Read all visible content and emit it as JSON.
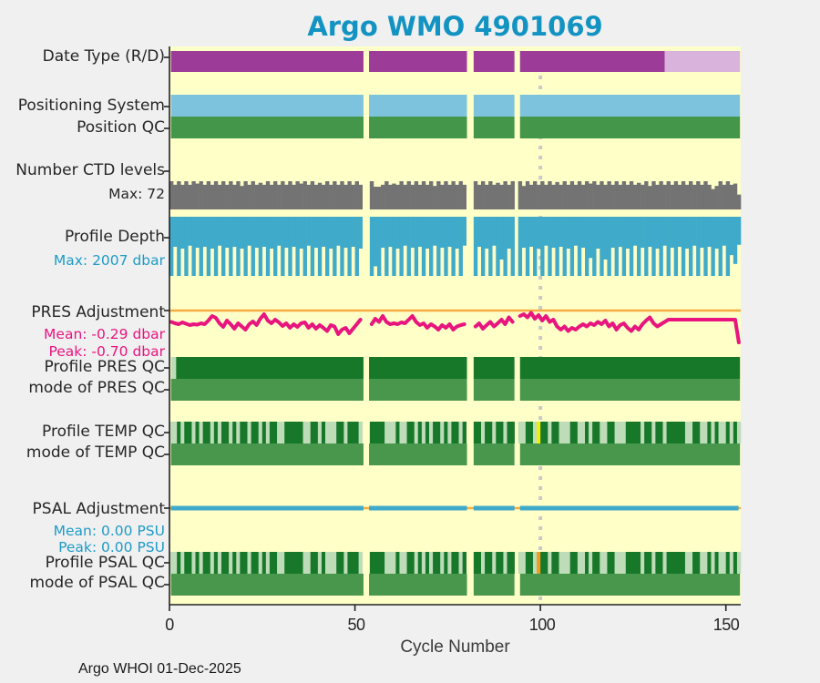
{
  "title": "Argo WMO 4901069",
  "footer": "Argo WHOI 01-Dec-2025",
  "x_axis": {
    "label": "Cycle Number",
    "tick_labels": [
      "0",
      "50",
      "100",
      "150"
    ]
  },
  "labels": {
    "date_type": "Date Type (R/D)",
    "positioning_system": "Positioning System",
    "position_qc": "Position QC",
    "ctd_levels": "Number CTD levels",
    "ctd_max": "Max: 72",
    "profile_depth": "Profile Depth",
    "depth_max": "Max: 2007 dbar",
    "pres_adjustment": "PRES Adjustment",
    "pres_mean": "Mean: -0.29 dbar",
    "pres_peak": "Peak: -0.70 dbar",
    "profile_pres_qc": "Profile PRES QC",
    "mode_pres_qc": "mode of PRES QC",
    "profile_temp_qc": "Profile TEMP QC",
    "mode_temp_qc": "mode of TEMP QC",
    "psal_adjustment": "PSAL Adjustment",
    "psal_mean": "Mean: 0.00 PSU",
    "psal_peak": "Peak: 0.00 PSU",
    "profile_psal_qc": "Profile PSAL QC",
    "mode_psal_qc": "mode of PSAL QC"
  },
  "colors": {
    "title": "#1293c2",
    "fig_bg": "#f0f0f0",
    "plot_bg": "#ffffc8",
    "purple": "#9c3c98",
    "light_purple": "#d9b3db",
    "light_blue": "#7ec3de",
    "green": "#44964a",
    "gray_bars": "#737373",
    "depth_blue": "#3faac9",
    "magenta": "#e8157f",
    "orange_line": "#f7ad42",
    "dark_green": "#17782a",
    "medium_green": "#49974d",
    "light_green": "#bfdcb8",
    "qc_yellow": "#f2ef00",
    "qc_orange": "#f29b1d",
    "dotted_line": "#c9c9c9",
    "axis": "#222222",
    "label_blue": "#1e9bc8"
  },
  "chart_data": {
    "type": "multi-row status timeline (Argo float QC summary)",
    "x_label": "Cycle Number",
    "x_range": [
      0,
      154
    ],
    "x_ticks": [
      0,
      50,
      100,
      150
    ],
    "reference_line_x": 100,
    "gap_cycles": [
      [
        52.3,
        53.8
      ],
      [
        80.2,
        82.0
      ],
      [
        93.0,
        94.5
      ]
    ],
    "rows": [
      {
        "id": "date_type",
        "type": "segments",
        "segments": [
          {
            "from": 0.4,
            "to": 52.3,
            "c": "purple"
          },
          {
            "from": 53.8,
            "to": 80.2,
            "c": "purple"
          },
          {
            "from": 82.0,
            "to": 93.0,
            "c": "purple"
          },
          {
            "from": 94.5,
            "to": 133.5,
            "c": "purple"
          },
          {
            "from": 133.5,
            "to": 153.8,
            "c": "light_purple"
          }
        ]
      },
      {
        "id": "positioning_system",
        "type": "segments",
        "segments": [
          {
            "from": 0.4,
            "to": 52.3,
            "c": "light_blue"
          },
          {
            "from": 53.8,
            "to": 80.2,
            "c": "light_blue"
          },
          {
            "from": 82.0,
            "to": 93.0,
            "c": "light_blue"
          },
          {
            "from": 94.5,
            "to": 153.8,
            "c": "light_blue"
          }
        ]
      },
      {
        "id": "position_qc",
        "type": "segments",
        "segments": [
          {
            "from": 0.4,
            "to": 52.3,
            "c": "green"
          },
          {
            "from": 53.8,
            "to": 80.2,
            "c": "green"
          },
          {
            "from": 82.0,
            "to": 93.0,
            "c": "green"
          },
          {
            "from": 94.5,
            "to": 153.8,
            "c": "green"
          }
        ]
      },
      {
        "id": "ctd_levels",
        "type": "bars_up",
        "max": 72,
        "values": [
          72,
          63,
          72,
          63,
          72,
          63,
          72,
          66,
          72,
          63,
          72,
          63,
          72,
          63,
          72,
          63,
          72,
          63,
          72,
          60,
          72,
          63,
          72,
          63,
          68,
          63,
          72,
          63,
          72,
          63,
          72,
          63,
          72,
          63,
          72,
          66,
          72,
          63,
          72,
          63,
          68,
          63,
          72,
          63,
          72,
          63,
          72,
          63,
          72,
          63,
          72,
          63,
          null,
          null,
          72,
          58,
          58,
          63,
          72,
          63,
          66,
          63,
          72,
          63,
          72,
          63,
          72,
          63,
          72,
          63,
          72,
          60,
          72,
          63,
          72,
          63,
          72,
          63,
          72,
          63,
          null,
          null,
          72,
          63,
          72,
          63,
          72,
          63,
          68,
          63,
          72,
          63,
          72,
          null,
          72,
          60,
          72,
          63,
          72,
          63,
          72,
          63,
          72,
          63,
          70,
          63,
          72,
          63,
          72,
          63,
          72,
          63,
          72,
          66,
          72,
          63,
          72,
          63,
          72,
          63,
          72,
          63,
          72,
          63,
          72,
          63,
          68,
          63,
          72,
          60,
          72,
          63,
          72,
          63,
          72,
          63,
          72,
          63,
          72,
          63,
          72,
          63,
          72,
          63,
          72,
          63,
          52,
          60,
          72,
          63,
          72,
          63,
          66,
          38
        ]
      },
      {
        "id": "profile_depth",
        "type": "bars_down",
        "max": 2007,
        "values": [
          2007,
          1020,
          2007,
          1080,
          2007,
          980,
          2007,
          1050,
          2007,
          1020,
          2007,
          1080,
          2007,
          980,
          2007,
          1050,
          2007,
          1020,
          2007,
          1080,
          2007,
          980,
          2007,
          1050,
          2007,
          1020,
          2007,
          1080,
          2007,
          980,
          2007,
          1050,
          2007,
          1020,
          2007,
          1080,
          2007,
          980,
          2007,
          1050,
          2007,
          1020,
          2007,
          1080,
          2007,
          980,
          2007,
          1050,
          2007,
          1020,
          2007,
          1080,
          null,
          null,
          2007,
          1680,
          2007,
          1050,
          2007,
          1020,
          2007,
          1080,
          2007,
          980,
          2007,
          1050,
          2007,
          1020,
          2007,
          1080,
          2007,
          980,
          2007,
          1050,
          2007,
          1020,
          2007,
          1080,
          2007,
          980,
          null,
          null,
          2007,
          1020,
          2007,
          1080,
          2007,
          980,
          2007,
          1450,
          2007,
          1080,
          2007,
          null,
          2007,
          1050,
          2007,
          1020,
          2007,
          1080,
          2007,
          980,
          2007,
          1050,
          2007,
          1020,
          2007,
          1080,
          2007,
          980,
          2007,
          1050,
          2007,
          1400,
          2007,
          1080,
          2007,
          1450,
          2007,
          1050,
          2007,
          1020,
          2007,
          1080,
          2007,
          980,
          2007,
          1050,
          2007,
          1020,
          2007,
          1080,
          2007,
          980,
          2007,
          1050,
          2007,
          1020,
          2007,
          1080,
          2007,
          980,
          2007,
          1050,
          2007,
          1020,
          2007,
          1080,
          2007,
          980,
          2007,
          1300,
          1600,
          950
        ]
      },
      {
        "id": "pres_adjustment",
        "type": "line",
        "unit": "dbar",
        "mean": -0.29,
        "peak": -0.7,
        "values": [
          -0.25,
          -0.28,
          -0.3,
          -0.26,
          -0.29,
          -0.32,
          -0.3,
          -0.31,
          -0.28,
          -0.3,
          -0.22,
          -0.12,
          -0.16,
          -0.28,
          -0.36,
          -0.22,
          -0.3,
          -0.4,
          -0.28,
          -0.35,
          -0.42,
          -0.3,
          -0.24,
          -0.32,
          -0.18,
          -0.08,
          -0.22,
          -0.28,
          -0.2,
          -0.26,
          -0.34,
          -0.28,
          -0.38,
          -0.3,
          -0.36,
          -0.28,
          -0.26,
          -0.38,
          -0.3,
          -0.4,
          -0.32,
          -0.38,
          -0.45,
          -0.32,
          -0.35,
          -0.52,
          -0.42,
          -0.38,
          -0.5,
          -0.4,
          -0.3,
          -0.2,
          null,
          null,
          -0.3,
          -0.18,
          -0.25,
          -0.12,
          -0.25,
          -0.3,
          -0.28,
          -0.3,
          -0.26,
          -0.28,
          -0.2,
          -0.12,
          -0.25,
          -0.32,
          -0.28,
          -0.38,
          -0.3,
          -0.35,
          -0.42,
          -0.32,
          -0.38,
          -0.3,
          -0.42,
          -0.35,
          -0.32,
          -0.3,
          null,
          null,
          -0.35,
          -0.28,
          -0.4,
          -0.32,
          -0.25,
          -0.35,
          -0.28,
          -0.2,
          -0.3,
          -0.15,
          -0.25,
          null,
          -0.12,
          -0.08,
          -0.15,
          -0.05,
          -0.18,
          -0.1,
          -0.22,
          -0.12,
          -0.25,
          -0.2,
          -0.35,
          -0.42,
          -0.35,
          -0.45,
          -0.38,
          -0.42,
          -0.35,
          -0.3,
          -0.35,
          -0.28,
          -0.32,
          -0.25,
          -0.3,
          -0.22,
          -0.35,
          -0.28,
          -0.42,
          -0.32,
          -0.28,
          -0.38,
          -0.45,
          -0.35,
          -0.42,
          -0.3,
          -0.22,
          -0.15,
          -0.28,
          -0.35,
          -0.3,
          -0.25,
          -0.2,
          -0.2,
          -0.2,
          -0.2,
          -0.2,
          -0.2,
          -0.2,
          -0.2,
          -0.2,
          -0.2,
          -0.2,
          -0.2,
          -0.2,
          -0.2,
          -0.2,
          -0.2,
          -0.2,
          -0.2,
          -0.2,
          -0.7
        ]
      },
      {
        "id": "profile_pres_qc",
        "type": "segments",
        "segments": [
          {
            "from": 0.4,
            "to": 1.8,
            "c": "light_green"
          },
          {
            "from": 1.8,
            "to": 52.3,
            "c": "dark_green"
          },
          {
            "from": 53.8,
            "to": 80.2,
            "c": "dark_green"
          },
          {
            "from": 82.0,
            "to": 93.0,
            "c": "dark_green"
          },
          {
            "from": 94.5,
            "to": 153.8,
            "c": "dark_green"
          }
        ]
      },
      {
        "id": "mode_pres_qc",
        "type": "segments",
        "segments": [
          {
            "from": 0.4,
            "to": 52.3,
            "c": "medium_green"
          },
          {
            "from": 53.8,
            "to": 80.2,
            "c": "medium_green"
          },
          {
            "from": 82.0,
            "to": 93.0,
            "c": "medium_green"
          },
          {
            "from": 94.5,
            "to": 153.8,
            "c": "medium_green"
          }
        ]
      },
      {
        "id": "profile_temp_qc",
        "type": "barcode",
        "pattern": "LLDLDDLDLDDLDLDDLDLDDLDDLDLDDLLDDDDDLLDDLDLLLDDLDDDLGGDDDDLLLDLLDDLDLDLDDLDLDDLDGGDDLDDLDDLDDGLLDDLYDDLDDLLLDDLLDLDDLLDDLLLDDDDLDDLDDLDDDDDLLDDLLDLDLLDLDL"
      },
      {
        "id": "mode_temp_qc",
        "type": "segments",
        "segments": [
          {
            "from": 0.4,
            "to": 52.3,
            "c": "medium_green"
          },
          {
            "from": 53.8,
            "to": 80.2,
            "c": "medium_green"
          },
          {
            "from": 82.0,
            "to": 93.0,
            "c": "medium_green"
          },
          {
            "from": 94.5,
            "to": 153.8,
            "c": "medium_green"
          }
        ]
      },
      {
        "id": "psal_adjustment",
        "type": "line_const",
        "unit": "PSU",
        "mean": 0.0,
        "peak": 0.0,
        "value": 0,
        "segments": [
          [
            0.4,
            52.3
          ],
          [
            53.8,
            80.2
          ],
          [
            82.0,
            93.0
          ],
          [
            94.5,
            153.4
          ]
        ]
      },
      {
        "id": "profile_psal_qc",
        "type": "barcode",
        "pattern": "LLDLDDLDLDDLDLDDLDLDDLDDLDLDDLLDDDDDLLDDLDLLLDDLDDDLGGDDDDLLLDLLDDLDLDLDDLDLDDLDGGDDLDDLDDLDDGLLDDLODDLDDLLLDDLLDLDDLLDDLLLDDDDLDDLDDLDDDDDLLDDLLDLDLLDLDL"
      },
      {
        "id": "mode_psal_qc",
        "type": "segments",
        "segments": [
          {
            "from": 0.4,
            "to": 52.3,
            "c": "medium_green"
          },
          {
            "from": 53.8,
            "to": 80.2,
            "c": "medium_green"
          },
          {
            "from": 82.0,
            "to": 93.0,
            "c": "medium_green"
          },
          {
            "from": 94.5,
            "to": 153.8,
            "c": "medium_green"
          }
        ]
      }
    ]
  }
}
